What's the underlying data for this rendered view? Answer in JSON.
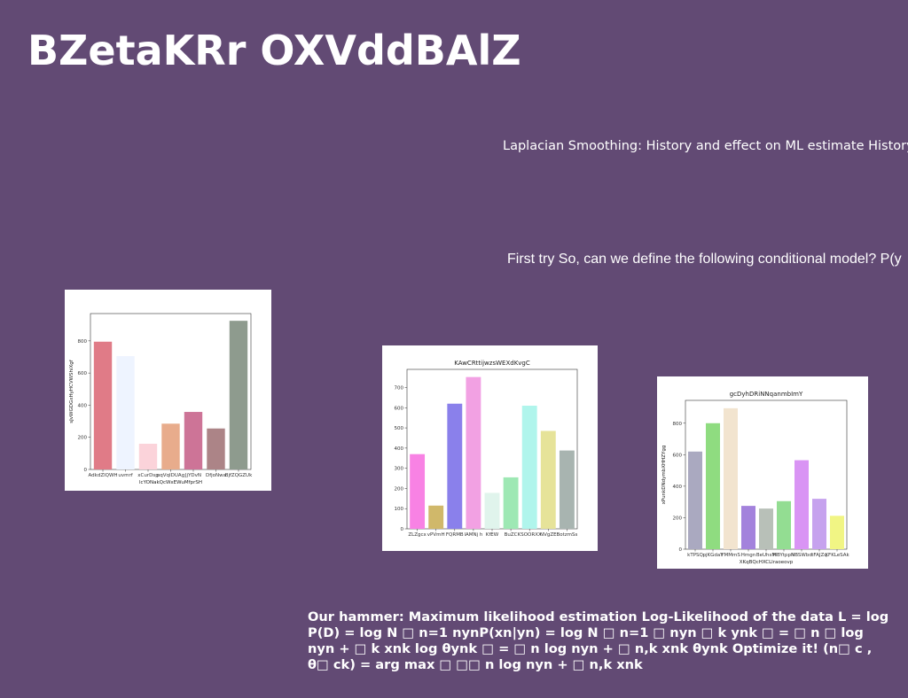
{
  "slide": {
    "title": "BZetaKRr OXVddBAlZ",
    "line1": "Laplacian Smoothing: History and effect on ML estimate History:",
    "line2": "First try So, can we define the following conditional model? P(y",
    "bottom_text": "Our hammer: Maximum likelihood estimation Log-Likelihood of the data L = log P(D) = log N □ n=1 nynP(xn|yn) = log N □ n=1 □ nyn □ k ynk □ = □ n □ log nyn + □ k xnk log θynk □ = □ n log nyn + □ n,k xnk θynk Optimize it! (n□ c , θ□ ck) = arg max □ □□ n log nyn + □ n,k xnk"
  },
  "chart_data": [
    {
      "type": "bar",
      "title": "",
      "xlabel": "lcYONakQcWxEWuMfprSH",
      "ylabel": "sJvWGDGxHyHCVWShiXgf",
      "categories": [
        "AdkdZlQWH",
        "uvmrf",
        "xCurDsp",
        "pqVqIDUAg",
        "JjYDvN",
        "DfjoNwa",
        "BjfZQGZUk"
      ],
      "values": [
        795,
        705,
        160,
        285,
        358,
        255,
        925
      ],
      "colors": [
        "#e07b87",
        "#eef4ff",
        "#fbd3da",
        "#e8ac8c",
        "#cd7497",
        "#ac8487",
        "#8e9b8e"
      ],
      "ylim": [
        0,
        970
      ],
      "yticks": [
        0,
        200,
        400,
        600,
        800
      ]
    },
    {
      "type": "bar",
      "title": "KAwCRttijwzsWEXdKvgC",
      "xlabel": "",
      "ylabel": "",
      "categories": [
        "ZLZgcx",
        "vPVmH",
        "FQRMB",
        "lAMNj h",
        "KfEW",
        "BuZC",
        "KSOORXX",
        "NVgZE",
        "BotzmSs"
      ],
      "values": [
        370,
        115,
        620,
        752,
        178,
        255,
        610,
        485,
        388
      ],
      "colors": [
        "#f882e4",
        "#d0b86a",
        "#8a80eb",
        "#f2a1e3",
        "#e0f4ec",
        "#9ee8b4",
        "#b0f5ec",
        "#e6e399",
        "#a8b4b0"
      ],
      "ylim": [
        0,
        790
      ],
      "yticks": [
        0,
        100,
        200,
        300,
        400,
        500,
        600,
        700
      ]
    },
    {
      "type": "bar",
      "title": "gcDyhDRiNNqanmbImY",
      "xlabel": "XKqBQcHXCLlraoeovp",
      "ylabel": "xPunkDNdymbXHHZYgg",
      "categories": [
        "kTPSQ",
        "pjKGdaY",
        "YMMmS",
        "Hmgn",
        "BeUhsM",
        "HBYtppN",
        "NBSWbd",
        "tFAJZq",
        "XFKLeSAk"
      ],
      "values": [
        620,
        800,
        895,
        275,
        258,
        305,
        565,
        320,
        212
      ],
      "colors": [
        "#aaa9c0",
        "#8fdc80",
        "#f2e4cf",
        "#a382dc",
        "#b8c0b8",
        "#93dd92",
        "#d994f4",
        "#c6a2ee",
        "#f1f584"
      ],
      "ylim": [
        0,
        945
      ],
      "yticks": [
        0,
        200,
        400,
        600,
        800
      ]
    }
  ]
}
